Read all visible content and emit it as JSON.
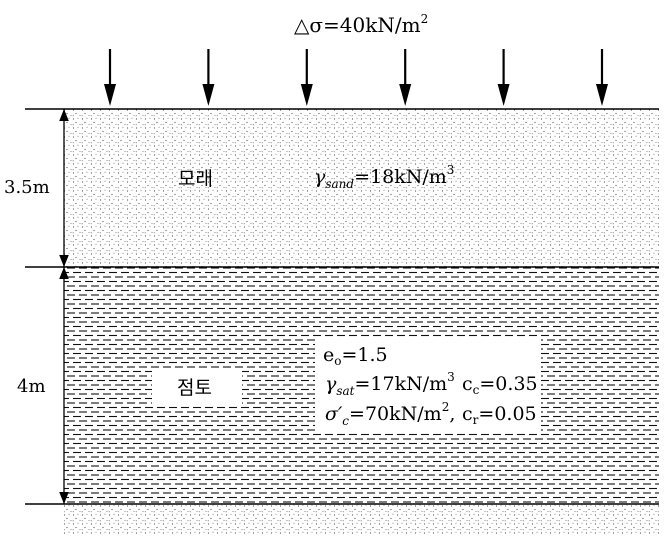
{
  "load": {
    "symbol": "△σ",
    "value": "=40kN/m",
    "power": "2",
    "arrow_count": 6
  },
  "sand": {
    "name": "모래",
    "thickness": "3.5m",
    "gamma_symbol": "γ",
    "gamma_sub": "sand",
    "gamma_value": "=18kN/m",
    "gamma_power": "3"
  },
  "clay": {
    "name": "점토",
    "thickness": "4m",
    "e0_base": "e",
    "e0_sub": "o",
    "e0_value": "=1.5",
    "gamma_symbol": "γ",
    "gamma_sub": "sat",
    "gamma_value": "=17kN/m",
    "gamma_power": "3",
    "cc_base": "c",
    "cc_sub": "c",
    "cc_value": "=0.35",
    "sigma_symbol": "σ′",
    "sigma_sub": "c",
    "sigma_value": "=70kN/m",
    "sigma_power": "2",
    "sigma_comma": ",",
    "cr_base": "c",
    "cr_sub": "r",
    "cr_value": "=0.05"
  }
}
